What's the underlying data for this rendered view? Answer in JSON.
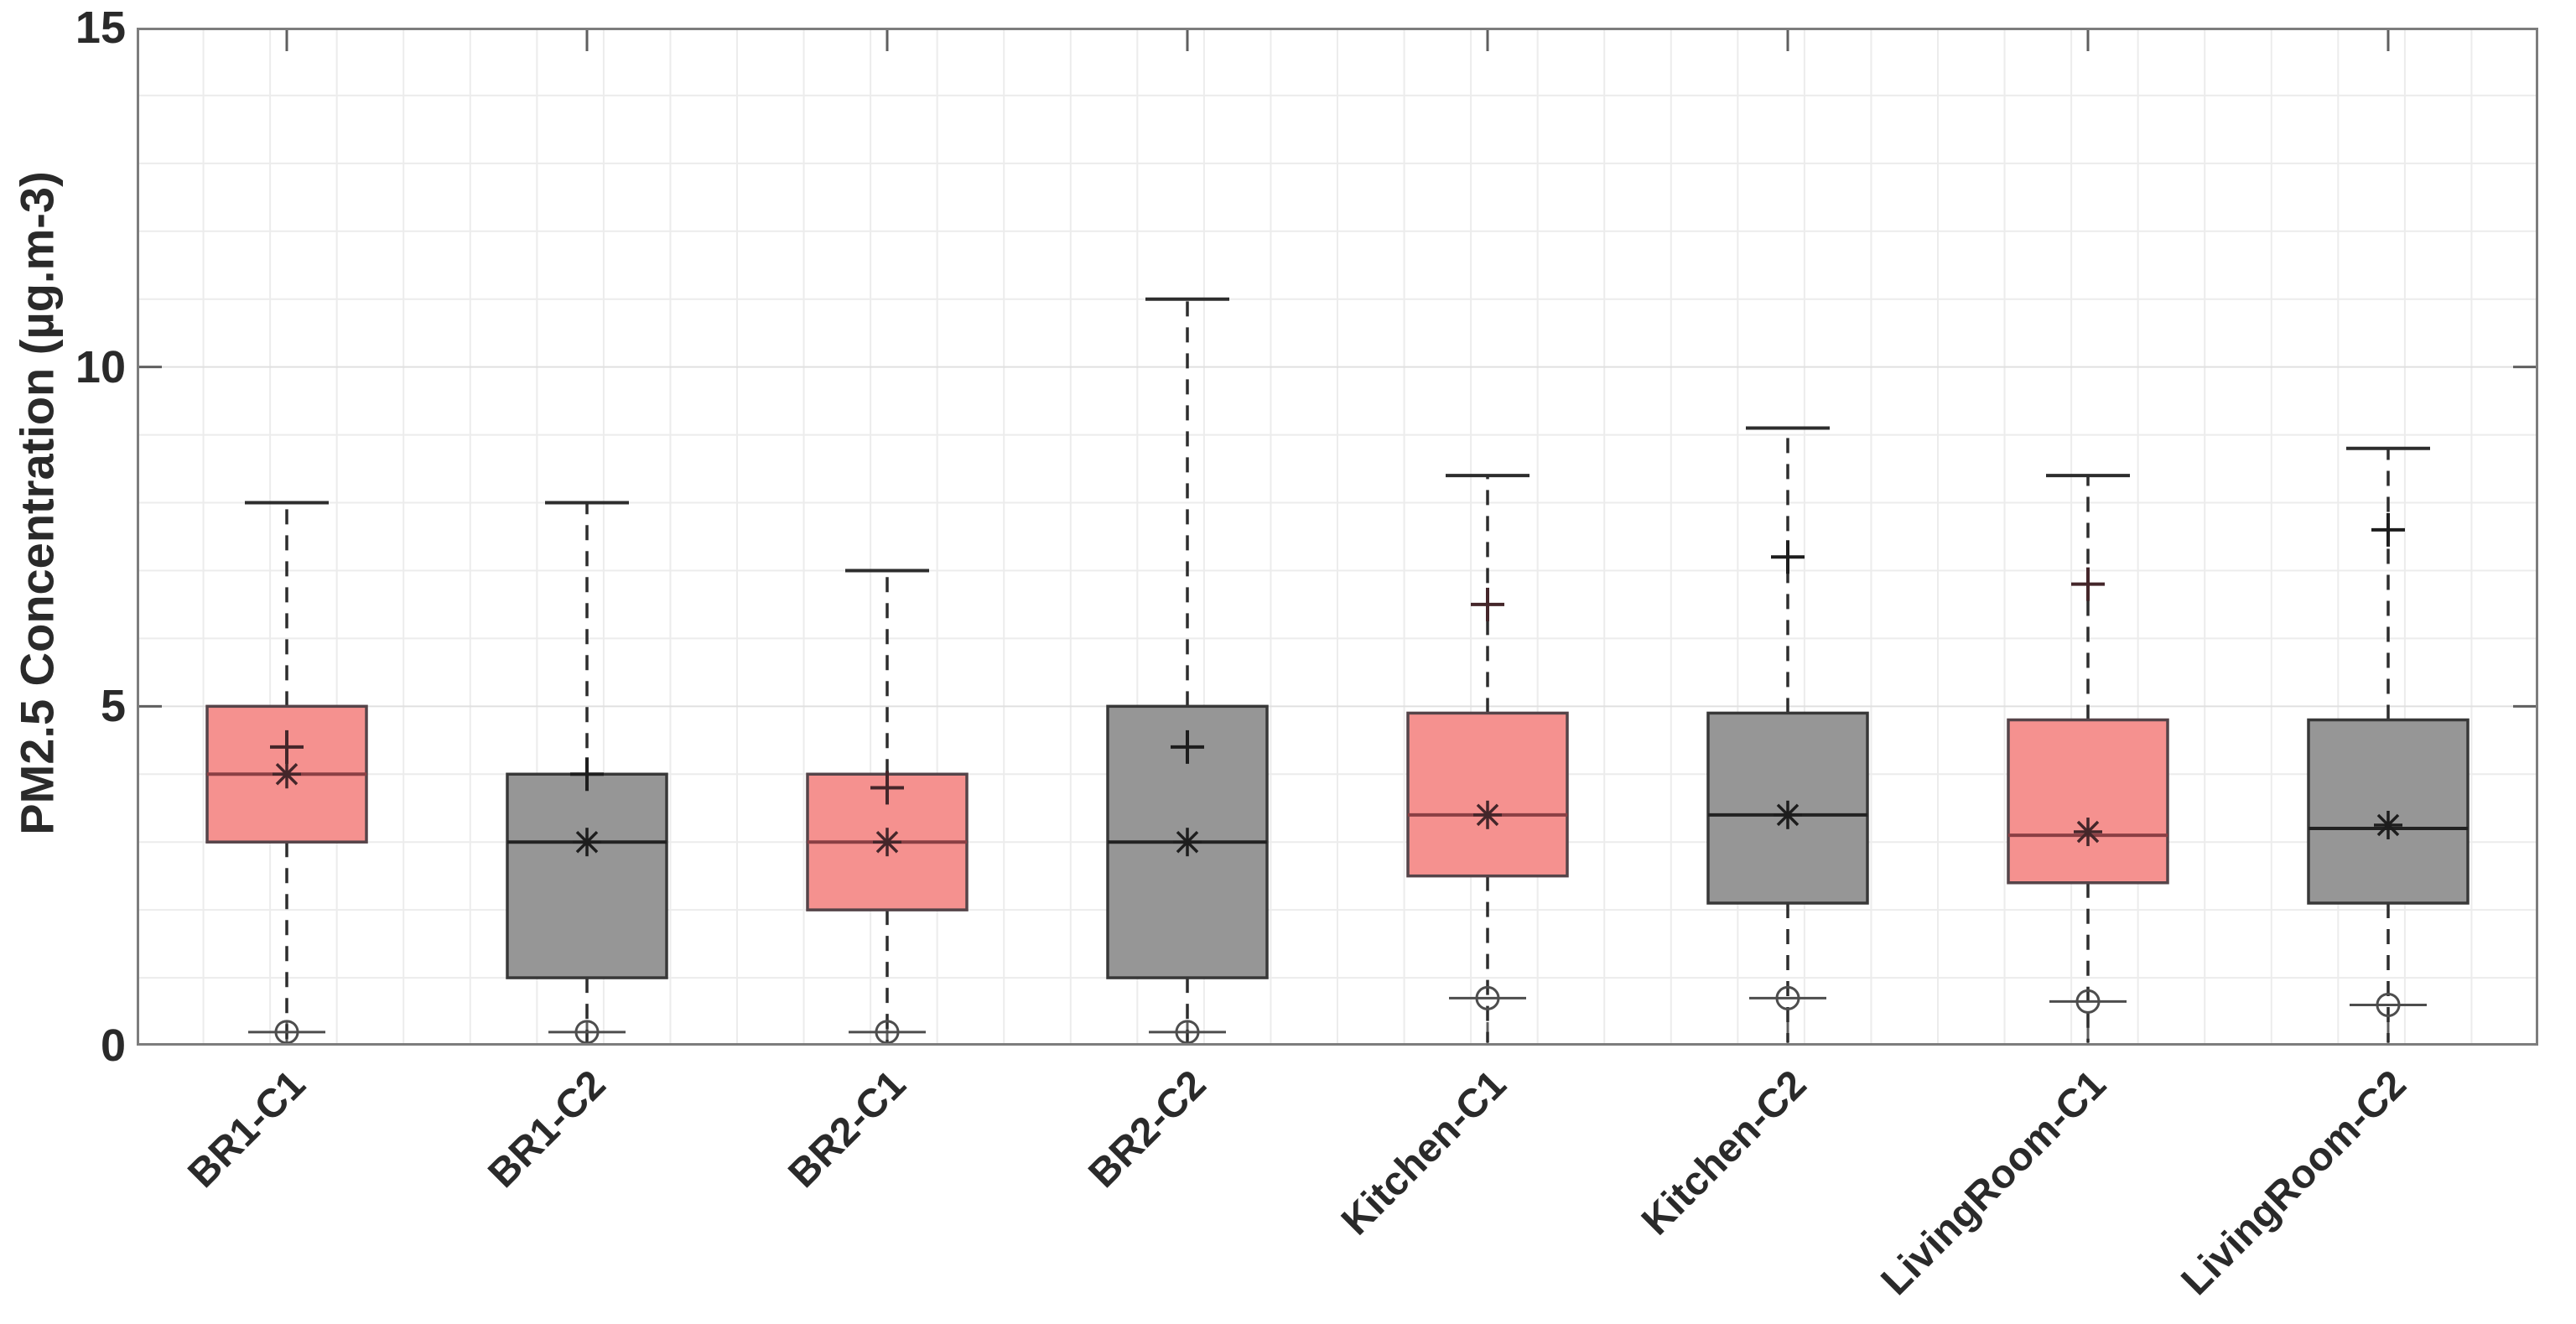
{
  "chart_data": {
    "type": "boxplot",
    "title": "",
    "xlabel": "",
    "ylabel": "PM2.5 Concentration (µg.m-3)",
    "ylim": [
      0,
      15
    ],
    "yticks": [
      0,
      5,
      10,
      15
    ],
    "grid": "fine light-gray minor grid, horizontal every 1 unit, vertical fine squares",
    "legend": "none",
    "categories": [
      "BR1-C1",
      "BR1-C2",
      "BR2-C1",
      "BR2-C2",
      "Kitchen-C1",
      "Kitchen-C2",
      "LivingRoom-C1",
      "LivingRoom-C2"
    ],
    "marker_semantics": {
      "plus": "upper point marker (+)",
      "star": "mean marker (*)",
      "circle": "lower point marker (o) with short horizontal line",
      "dashed_line": "whiskers",
      "solid_cap": "whisker end cap at maximum"
    },
    "series": [
      {
        "label": "BR1-C1",
        "group": "C1",
        "whisker_low": 0.05,
        "p5_circle": 0.2,
        "q1": 3.0,
        "median": 4.0,
        "mean": 4.0,
        "q3": 5.0,
        "p95_plus": 4.4,
        "whisker_high": 8.0
      },
      {
        "label": "BR1-C2",
        "group": "C2",
        "whisker_low": 0.05,
        "p5_circle": 0.2,
        "q1": 1.0,
        "median": 3.0,
        "mean": 3.0,
        "q3": 4.0,
        "p95_plus": 4.0,
        "whisker_high": 8.0
      },
      {
        "label": "BR2-C1",
        "group": "C1",
        "whisker_low": 0.05,
        "p5_circle": 0.2,
        "q1": 2.0,
        "median": 3.0,
        "mean": 3.0,
        "q3": 4.0,
        "p95_plus": 3.8,
        "whisker_high": 7.0
      },
      {
        "label": "BR2-C2",
        "group": "C2",
        "whisker_low": 0.05,
        "p5_circle": 0.2,
        "q1": 1.0,
        "median": 3.0,
        "mean": 3.0,
        "q3": 5.0,
        "p95_plus": 4.4,
        "whisker_high": 11.0
      },
      {
        "label": "Kitchen-C1",
        "group": "C1",
        "whisker_low": 0.05,
        "p5_circle": 0.7,
        "q1": 2.5,
        "median": 3.4,
        "mean": 3.4,
        "q3": 4.9,
        "p95_plus": 6.5,
        "whisker_high": 8.4
      },
      {
        "label": "Kitchen-C2",
        "group": "C2",
        "whisker_low": 0.05,
        "p5_circle": 0.7,
        "q1": 2.1,
        "median": 3.4,
        "mean": 3.4,
        "q3": 4.9,
        "p95_plus": 7.2,
        "whisker_high": 9.1
      },
      {
        "label": "LivingRoom-C1",
        "group": "C1",
        "whisker_low": 0.05,
        "p5_circle": 0.65,
        "q1": 2.4,
        "median": 3.1,
        "mean": 3.15,
        "q3": 4.8,
        "p95_plus": 6.8,
        "whisker_high": 8.4
      },
      {
        "label": "LivingRoom-C2",
        "group": "C2",
        "whisker_low": 0.05,
        "p5_circle": 0.6,
        "q1": 2.1,
        "median": 3.2,
        "mean": 3.25,
        "q3": 4.8,
        "p95_plus": 7.6,
        "whisker_high": 8.8
      }
    ],
    "groups": {
      "C1": {
        "fill": "#f5918f",
        "edge": "#554449",
        "median": "#8a3f44",
        "marker": "#44262a"
      },
      "C2": {
        "fill": "#969696",
        "edge": "#383838",
        "median": "#222222",
        "marker": "#1d1d1d"
      }
    },
    "style": {
      "spine_color": "#7d7d7d",
      "grid_minor_color": "#ececec",
      "grid_major_color": "#e0e0e0",
      "whisker_color": "#2d2d2d",
      "text_color": "#2a2a2a",
      "background": "#ffffff"
    }
  }
}
